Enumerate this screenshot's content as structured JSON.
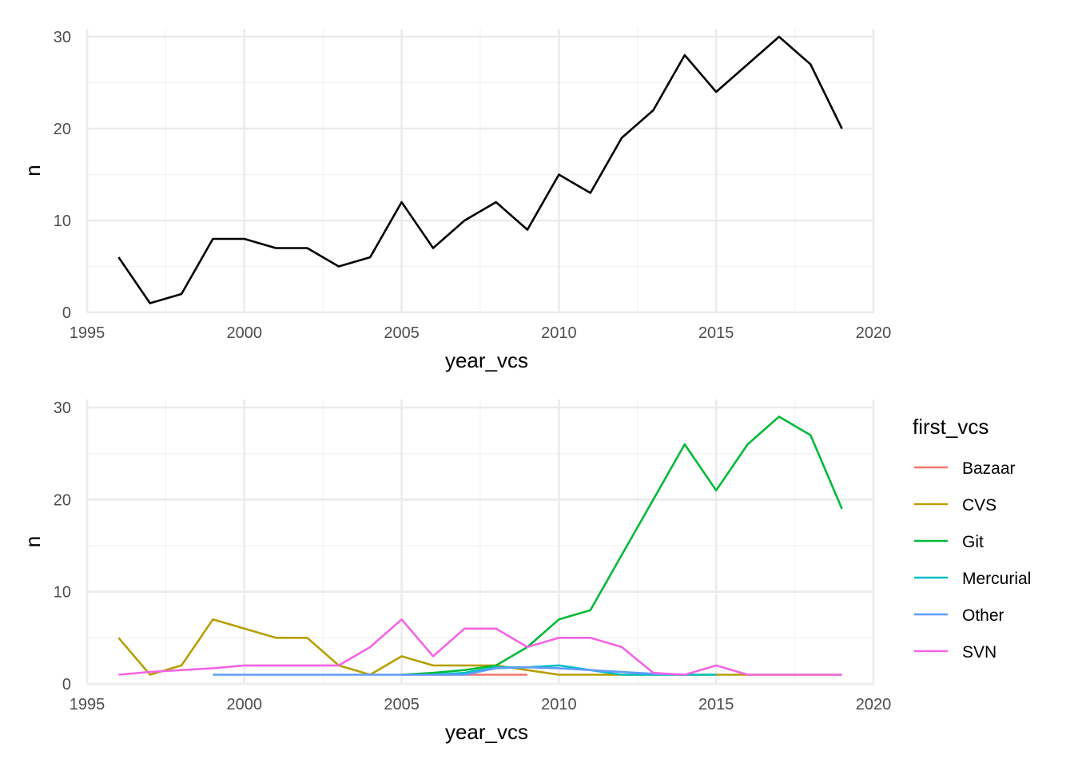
{
  "chart_data": [
    {
      "type": "line",
      "xlabel": "year_vcs",
      "ylabel": "n",
      "xlim": [
        1995,
        2020
      ],
      "ylim": [
        0,
        30
      ],
      "x_ticks": [
        1995,
        2000,
        2005,
        2010,
        2015,
        2020
      ],
      "y_ticks": [
        0,
        10,
        20,
        30
      ],
      "grid": true,
      "series": [
        {
          "color": "#000000",
          "x": [
            1996,
            1997,
            1998,
            1999,
            2000,
            2001,
            2002,
            2003,
            2004,
            2005,
            2006,
            2007,
            2008,
            2009,
            2010,
            2011,
            2012,
            2013,
            2014,
            2015,
            2016,
            2017,
            2018,
            2019
          ],
          "values": [
            6,
            1,
            2,
            8,
            8,
            7,
            7,
            5,
            6,
            12,
            7,
            10,
            12,
            9,
            15,
            13,
            19,
            22,
            28,
            24,
            27,
            30,
            27,
            20
          ]
        }
      ]
    },
    {
      "type": "line",
      "xlabel": "year_vcs",
      "ylabel": "n",
      "xlim": [
        1995,
        2020
      ],
      "ylim": [
        0,
        30
      ],
      "x_ticks": [
        1995,
        2000,
        2005,
        2010,
        2015,
        2020
      ],
      "y_ticks": [
        0,
        10,
        20,
        30
      ],
      "grid": true,
      "legend_title": "first_vcs",
      "legend_position": "right",
      "series": [
        {
          "name": "Bazaar",
          "color": "#F8766D",
          "x": [
            2005,
            2006,
            2007,
            2008,
            2009
          ],
          "values": [
            1,
            1,
            1,
            1,
            1
          ]
        },
        {
          "name": "CVS",
          "color": "#B79F00",
          "x": [
            1996,
            1997,
            1998,
            1999,
            2000,
            2001,
            2002,
            2003,
            2004,
            2005,
            2006,
            2007,
            2008,
            2009,
            2010,
            2011,
            2012,
            2013,
            2014,
            2015,
            2016,
            2017,
            2018,
            2019
          ],
          "values": [
            5,
            1,
            2,
            7,
            6,
            5,
            5,
            2,
            1,
            3,
            2,
            2,
            2,
            1.5,
            1,
            1,
            1,
            1,
            1,
            1,
            1,
            1,
            1,
            1
          ]
        },
        {
          "name": "Git",
          "color": "#00BA38",
          "x": [
            2005,
            2006,
            2007,
            2008,
            2009,
            2010,
            2011,
            2012,
            2013,
            2014,
            2015,
            2016,
            2017,
            2018,
            2019
          ],
          "values": [
            1,
            1.2,
            1.5,
            2,
            4,
            7,
            8,
            14,
            20,
            26,
            21,
            26,
            29,
            27,
            19
          ]
        },
        {
          "name": "Mercurial",
          "color": "#00BFC4",
          "x": [
            2006,
            2007,
            2008,
            2009,
            2010,
            2011,
            2012,
            2013,
            2014,
            2015
          ],
          "values": [
            1,
            1.2,
            1.8,
            1.8,
            2,
            1.5,
            1,
            1,
            1,
            1
          ]
        },
        {
          "name": "Other",
          "color": "#619CFF",
          "x": [
            1999,
            2000,
            2001,
            2002,
            2003,
            2004,
            2005,
            2006,
            2007,
            2008,
            2009,
            2010,
            2011,
            2012,
            2013,
            2014
          ],
          "values": [
            1,
            1,
            1,
            1,
            1,
            1,
            1,
            1,
            1,
            1.7,
            1.8,
            1.7,
            1.5,
            1.3,
            1.1,
            1
          ]
        },
        {
          "name": "SVN",
          "color": "#F564E3",
          "x": [
            1996,
            1997,
            1998,
            1999,
            2000,
            2001,
            2002,
            2003,
            2004,
            2005,
            2006,
            2007,
            2008,
            2009,
            2010,
            2011,
            2012,
            2013,
            2014,
            2015,
            2016,
            2017,
            2018,
            2019
          ],
          "values": [
            1,
            1.3,
            1.5,
            1.7,
            2,
            2,
            2,
            2,
            4,
            7,
            3,
            6,
            6,
            4,
            5,
            5,
            4,
            1.2,
            1,
            2,
            1,
            1,
            1,
            1
          ]
        }
      ]
    }
  ]
}
